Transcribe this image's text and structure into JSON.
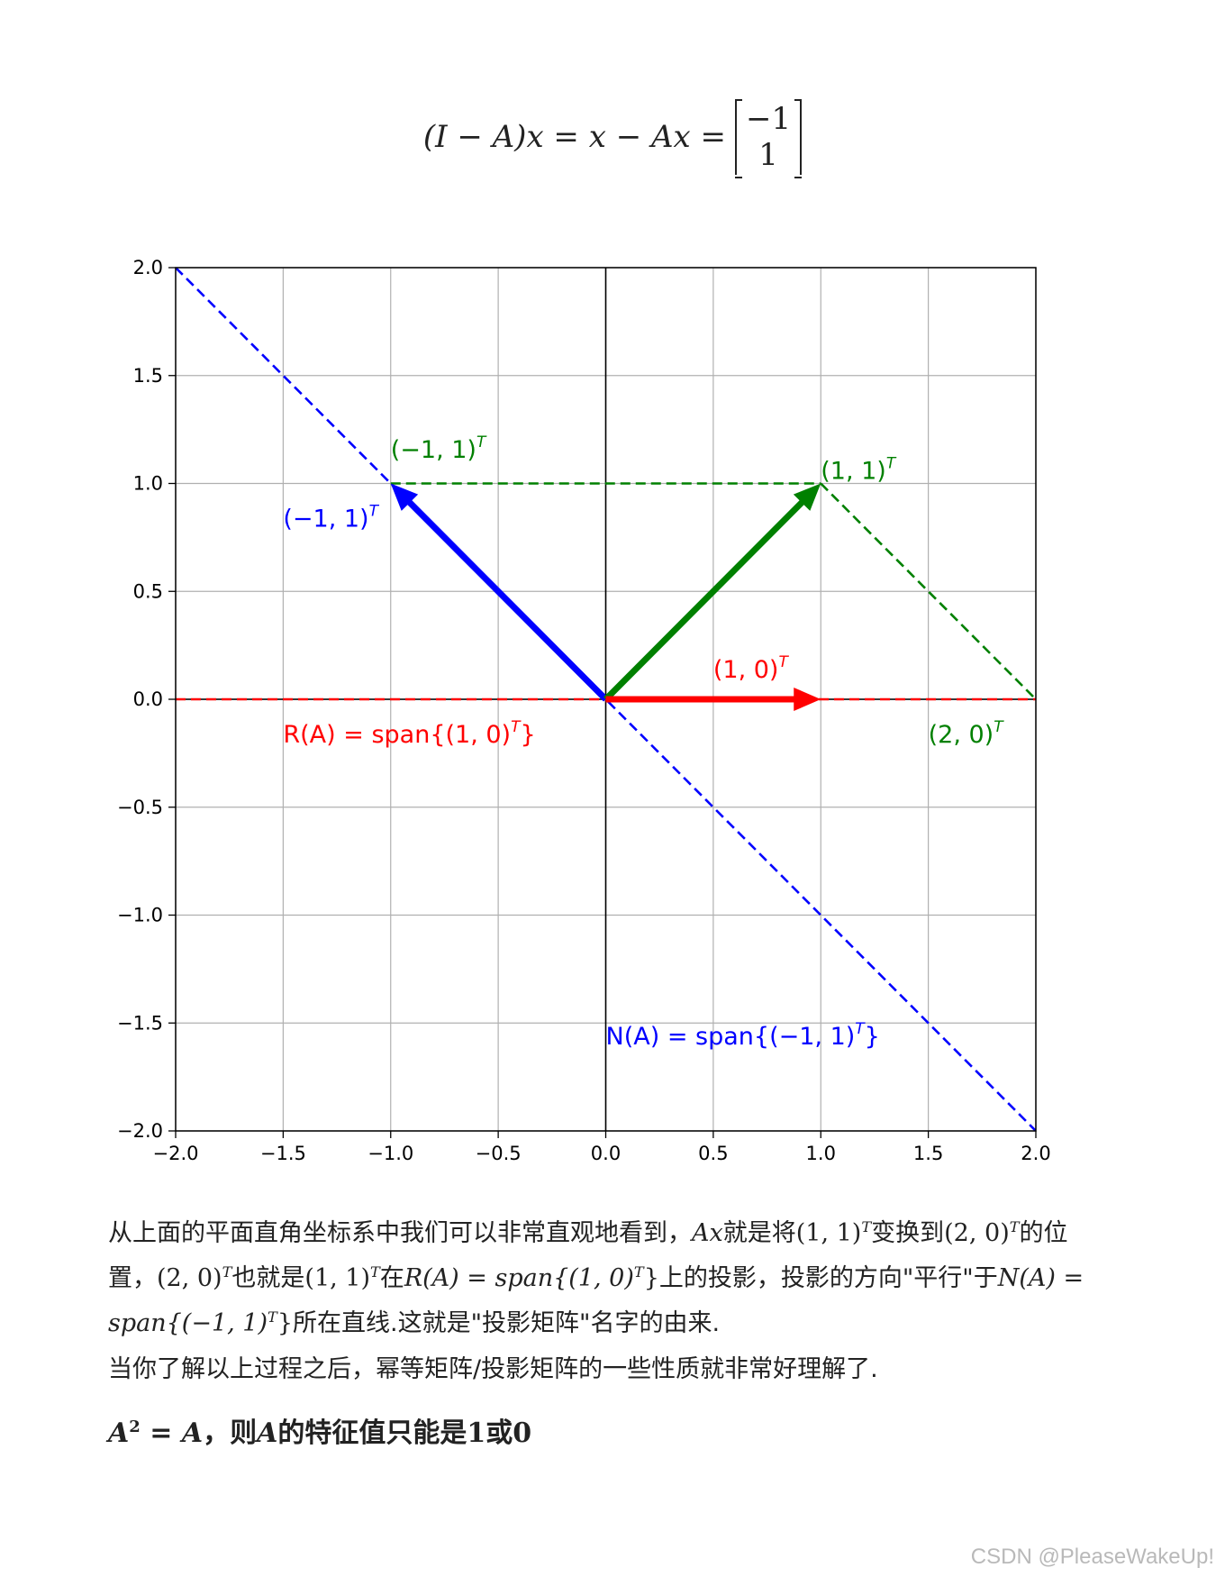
{
  "formula": {
    "lhs": "(I − A)x = x − Ax =",
    "matrix_top": "−1",
    "matrix_bottom": "1"
  },
  "chart_data": {
    "type": "line",
    "xlim": [
      -2.0,
      2.0
    ],
    "ylim": [
      -2.0,
      2.0
    ],
    "grid": true,
    "x_ticks": [
      "−2.0",
      "−1.5",
      "−1.0",
      "−0.5",
      "0.0",
      "0.5",
      "1.0",
      "1.5",
      "2.0"
    ],
    "y_ticks": [
      "2.0",
      "1.5",
      "1.0",
      "0.5",
      "0.0",
      "−0.5",
      "−1.0",
      "−1.5",
      "−2.0"
    ],
    "x_tick_values": [
      -2.0,
      -1.5,
      -1.0,
      -0.5,
      0.0,
      0.5,
      1.0,
      1.5,
      2.0
    ],
    "y_tick_values": [
      2.0,
      1.5,
      1.0,
      0.5,
      0.0,
      -0.5,
      -1.0,
      -1.5,
      -2.0
    ],
    "axis_lines": [
      {
        "name": "x-axis",
        "from": [
          -2.0,
          0.0
        ],
        "to": [
          2.0,
          0.0
        ],
        "color": "#000000"
      },
      {
        "name": "y-axis",
        "from": [
          0.0,
          -2.0
        ],
        "to": [
          0.0,
          2.0
        ],
        "color": "#000000"
      }
    ],
    "dashed_lines": [
      {
        "name": "red-range-line",
        "from": [
          -2.0,
          0.0
        ],
        "to": [
          2.0,
          0.0
        ],
        "color": "#ff0000"
      },
      {
        "name": "blue-null-line",
        "from": [
          -2.0,
          2.0
        ],
        "to": [
          2.0,
          -2.0
        ],
        "color": "#0000ff"
      },
      {
        "name": "green-horizontal-line",
        "from": [
          -1.0,
          1.0
        ],
        "to": [
          1.0,
          1.0
        ],
        "color": "#008000"
      },
      {
        "name": "green-diagonal-line",
        "from": [
          1.0,
          1.0
        ],
        "to": [
          2.0,
          0.0
        ],
        "color": "#008000"
      }
    ],
    "vectors": [
      {
        "name": "blue-vector",
        "from": [
          0.0,
          0.0
        ],
        "to": [
          -1.0,
          1.0
        ],
        "color": "#0000ff"
      },
      {
        "name": "green-vector",
        "from": [
          0.0,
          0.0
        ],
        "to": [
          1.0,
          1.0
        ],
        "color": "#008000"
      },
      {
        "name": "red-vector",
        "from": [
          0.0,
          0.0
        ],
        "to": [
          1.0,
          0.0
        ],
        "color": "#ff0000"
      }
    ],
    "annotations": [
      {
        "name": "label-green-neg1-1",
        "text": "(−1, 1)",
        "sup": "T",
        "x": -1.0,
        "y": 1.12,
        "color": "#008000"
      },
      {
        "name": "label-blue-neg1-1",
        "text": "(−1, 1)",
        "sup": "T",
        "x": -1.5,
        "y": 0.8,
        "color": "#0000ff"
      },
      {
        "name": "label-green-1-1",
        "text": "(1, 1)",
        "sup": "T",
        "x": 1.0,
        "y": 1.02,
        "color": "#008000"
      },
      {
        "name": "label-red-1-0",
        "text": "(1, 0)",
        "sup": "T",
        "x": 0.5,
        "y": 0.1,
        "color": "#ff0000"
      },
      {
        "name": "label-green-2-0",
        "text": "(2, 0)",
        "sup": "T",
        "x": 1.5,
        "y": -0.2,
        "color": "#008000"
      },
      {
        "name": "label-range",
        "text": "R(A) = span{(1, 0)",
        "sup": "T",
        "tail": "}",
        "x": -1.5,
        "y": -0.2,
        "color": "#ff0000"
      },
      {
        "name": "label-null",
        "text": "N(A) = span{(−1, 1)",
        "sup": "T",
        "tail": "}",
        "x": 0.0,
        "y": -1.6,
        "color": "#0000ff"
      }
    ]
  },
  "paragraph": {
    "p1": "从上面的平面直角坐标系中我们可以非常直观地看到，",
    "m1": "Ax",
    "p2": "就是将",
    "m2": "(1, 1)",
    "m2s": "T",
    "p3": "变换到",
    "m3": "(2, 0)",
    "m3s": "T",
    "p4": "的位置，",
    "m4": "(2, 0)",
    "m4s": "T",
    "p5": "也就是",
    "m5": "(1, 1)",
    "m5s": "T",
    "p6": "在",
    "m6": "R(A) = span{(1, 0)",
    "m6s": "T",
    "m6t": "}",
    "p7": "上的投影，投影的方向\"平行\"于",
    "m7": "N(A) = span{(−1, 1)",
    "m7s": "T",
    "m7t": "}",
    "p8": "所在直线.这就是\"投影矩阵\"名字的由来."
  },
  "paragraph2": "当你了解以上过程之后，幂等矩阵/投影矩阵的一些性质就非常好理解了.",
  "heading": {
    "m1": "A",
    "m1s": "2",
    "m2": " = A",
    "t1": "，则",
    "m3": "A",
    "t2": "的特征值只能是",
    "m4": "1",
    "t3": "或",
    "m5": "0"
  },
  "watermark": "CSDN @PleaseWakeUp!"
}
